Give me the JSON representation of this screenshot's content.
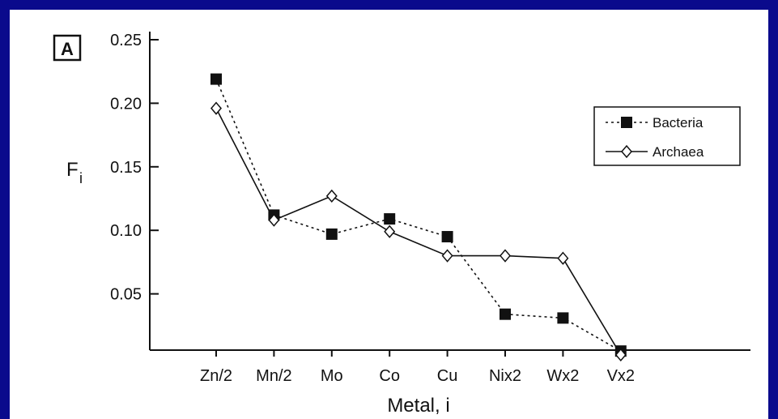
{
  "colors": {
    "frame_border": "#0a0a8c",
    "background": "#ffffff",
    "ink": "#111111"
  },
  "chart_data": {
    "type": "line",
    "panel_label": "A",
    "xlabel": "Metal, i",
    "ylabel_main": "F",
    "ylabel_sub": "i",
    "categories": [
      "Zn/2",
      "Mn/2",
      "Mo",
      "Co",
      "Cu",
      "Nix2",
      "Wx2",
      "Vx2"
    ],
    "yticks": [
      "0.25",
      "0.20",
      "0.15",
      "0.10",
      "0.05"
    ],
    "ytick_values": [
      0.25,
      0.2,
      0.15,
      0.1,
      0.05
    ],
    "ylim": [
      0,
      0.25
    ],
    "grid": false,
    "legend_position": "top-right",
    "series": [
      {
        "name": "Bacteria",
        "line_style": "dotted",
        "marker": "filled-square",
        "values": [
          0.219,
          0.112,
          0.097,
          0.109,
          0.095,
          0.034,
          0.031,
          0.005
        ]
      },
      {
        "name": "Archaea",
        "line_style": "solid",
        "marker": "open-diamond",
        "values": [
          0.196,
          0.108,
          0.127,
          0.099,
          0.08,
          0.08,
          0.078,
          0.002
        ]
      }
    ]
  }
}
